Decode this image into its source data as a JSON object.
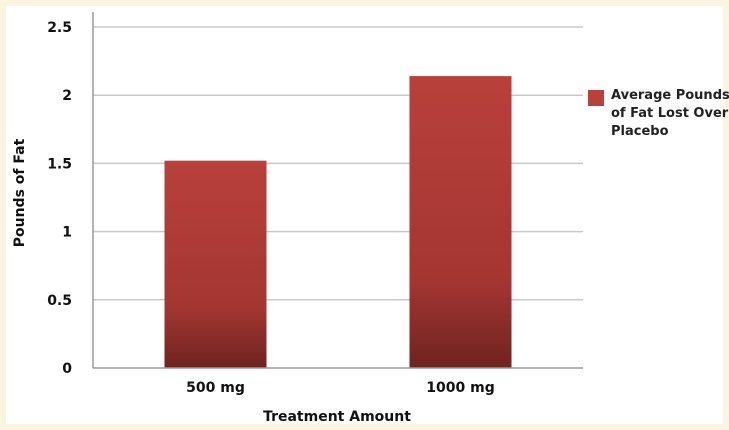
{
  "chart_data": {
    "type": "bar",
    "title": "",
    "xlabel": "Treatment Amount",
    "ylabel": "Pounds of Fat",
    "categories": [
      "500 mg",
      "1000 mg"
    ],
    "series": [
      {
        "name": "Average Pounds of Fat Lost Over Placebo",
        "values": [
          1.52,
          2.14
        ]
      }
    ],
    "ylim": [
      0,
      2.5
    ],
    "yticks": [
      "0",
      "0.5",
      "1",
      "1.5",
      "2",
      "2.5"
    ],
    "grid": true,
    "legend_position": "right",
    "colors": {
      "bar_top": "#b9403b",
      "bar_bottom": "#6f2320",
      "grid": "#c8c8c8",
      "axis": "#9a9a9a"
    }
  }
}
